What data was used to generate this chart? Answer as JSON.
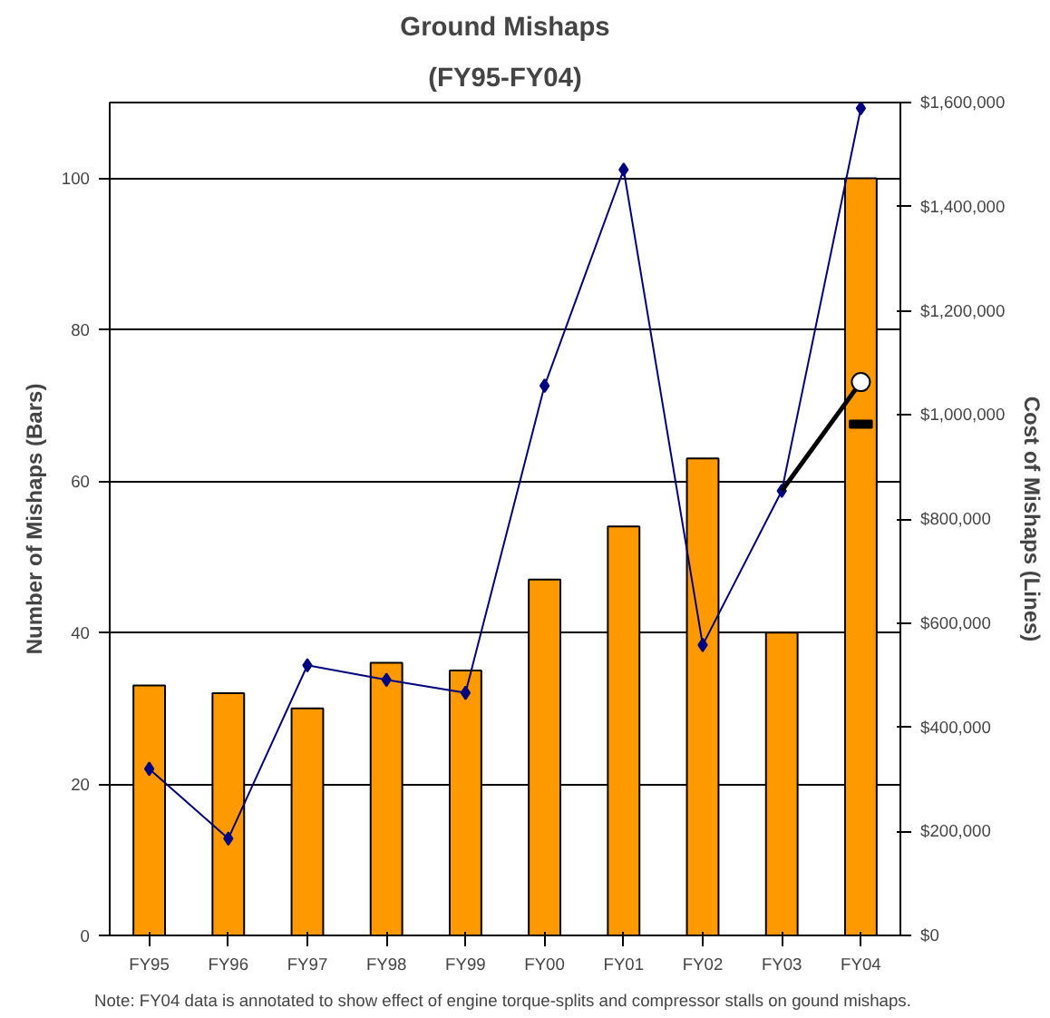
{
  "chart_data": {
    "type": "bar",
    "title": "Ground Mishaps",
    "subtitle": "(FY95-FY04)",
    "ylabel": "Number of Mishaps (Bars)",
    "y2label": "Cost of Mishaps (Lines)",
    "categories": [
      "FY95",
      "FY96",
      "FY97",
      "FY98",
      "FY99",
      "FY00",
      "FY01",
      "FY02",
      "FY03",
      "FY04"
    ],
    "series": [
      {
        "color": "#ff9900",
        "values": [
          33,
          32,
          30,
          36,
          35,
          47,
          54,
          63,
          40,
          100
        ]
      },
      {
        "type": "line",
        "axis": "y2",
        "color": "#000080",
        "marker": "diamond",
        "values": [
          320000,
          186000,
          519000,
          491000,
          466000,
          1056000,
          1471000,
          558000,
          854000,
          1589000
        ]
      },
      {
        "type": "line",
        "axis": "y2",
        "color": "#000000",
        "marker": "none",
        "values": [
          null,
          null,
          null,
          null,
          null,
          null,
          null,
          null,
          854000,
          1063000
        ]
      },
      {
        "type": "scatter",
        "axis": "y2",
        "color": "#ffffff",
        "marker": "circle",
        "values": [
          null,
          null,
          null,
          null,
          null,
          null,
          null,
          null,
          null,
          1063000
        ]
      },
      {
        "type": "scatter",
        "axis": "y2",
        "color": "#000000",
        "marker": "square",
        "values": [
          null,
          null,
          null,
          null,
          null,
          null,
          null,
          null,
          null,
          982000
        ]
      }
    ],
    "ylim": [
      0,
      110
    ],
    "yticks": [
      0,
      20,
      40,
      60,
      80,
      100
    ],
    "y2lim": [
      0,
      1600000
    ],
    "y2ticks": [
      {
        "value": 0,
        "label": "$0"
      },
      {
        "value": 200000,
        "label": "$200,000"
      },
      {
        "value": 400000,
        "label": "$400,000"
      },
      {
        "value": 600000,
        "label": "$600,000"
      },
      {
        "value": 800000,
        "label": "$800,000"
      },
      {
        "value": 1000000,
        "label": "$1,000,000"
      },
      {
        "value": 1200000,
        "label": "$1,200,000"
      },
      {
        "value": 1400000,
        "label": "$1,400,000"
      },
      {
        "value": 1600000,
        "label": "$1,600,000"
      }
    ],
    "grid": "y",
    "annotations": [
      "Note:  FY04 data is annotated to show effect of engine torque-splits and compressor stalls on gound mishaps."
    ]
  }
}
